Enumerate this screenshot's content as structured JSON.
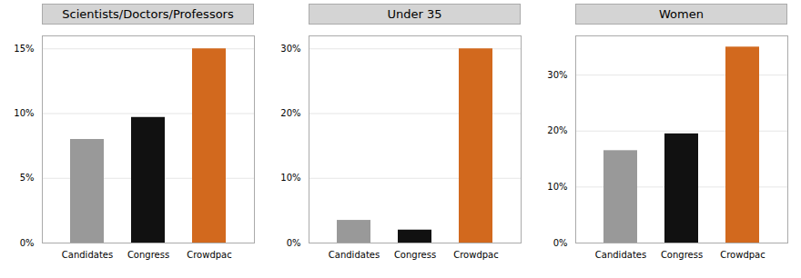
{
  "chart_data": [
    {
      "type": "bar",
      "title": "Scientists/Doctors/Professors",
      "categories": [
        "Candidates",
        "Congress",
        "Crowdpac"
      ],
      "values": [
        0.08,
        0.097,
        0.15
      ],
      "colors": [
        "#999999",
        "#111111",
        "#d2691e"
      ],
      "ylim": [
        0,
        0.16
      ],
      "yticks": [
        {
          "value": 0.0,
          "label": "0%"
        },
        {
          "value": 0.05,
          "label": "5%"
        },
        {
          "value": 0.1,
          "label": "10%"
        },
        {
          "value": 0.15,
          "label": "15%"
        }
      ],
      "grid": true
    },
    {
      "type": "bar",
      "title": "Under 35",
      "categories": [
        "Candidates",
        "Congress",
        "Crowdpac"
      ],
      "values": [
        0.035,
        0.02,
        0.3
      ],
      "colors": [
        "#999999",
        "#111111",
        "#d2691e"
      ],
      "ylim": [
        0,
        0.32
      ],
      "yticks": [
        {
          "value": 0.0,
          "label": "0%"
        },
        {
          "value": 0.1,
          "label": "10%"
        },
        {
          "value": 0.2,
          "label": "20%"
        },
        {
          "value": 0.3,
          "label": "30%"
        }
      ],
      "grid": true
    },
    {
      "type": "bar",
      "title": "Women",
      "categories": [
        "Candidates",
        "Congress",
        "Crowdpac"
      ],
      "values": [
        0.165,
        0.195,
        0.35
      ],
      "colors": [
        "#999999",
        "#111111",
        "#d2691e"
      ],
      "ylim": [
        0,
        0.37
      ],
      "yticks": [
        {
          "value": 0.0,
          "label": "0%"
        },
        {
          "value": 0.1,
          "label": "10%"
        },
        {
          "value": 0.2,
          "label": "20%"
        },
        {
          "value": 0.3,
          "label": "30%"
        }
      ],
      "grid": true
    }
  ]
}
